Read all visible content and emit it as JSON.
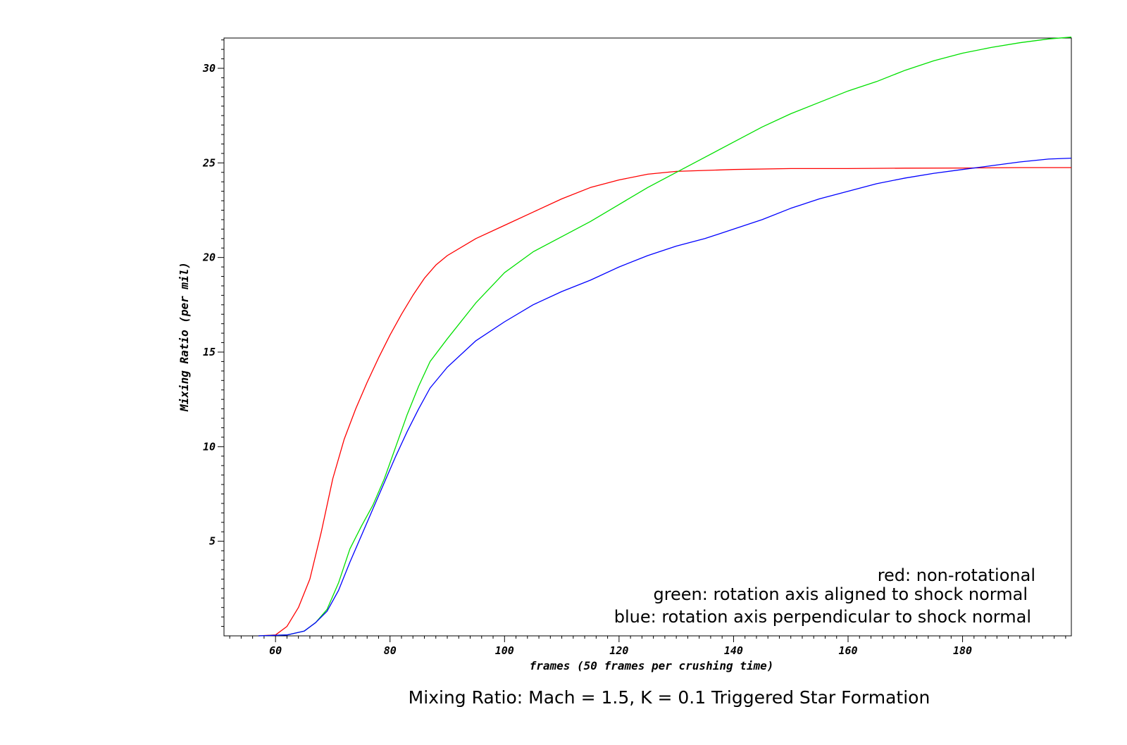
{
  "chart_data": {
    "type": "line",
    "title": "Mixing Ratio: Mach = 1.5, K = 0.1 Triggered Star Formation",
    "xlabel": "frames (50 frames per crushing time)",
    "ylabel": "Mixing Ratio (per mil)",
    "xlim": [
      51,
      199
    ],
    "ylim": [
      0,
      31.6
    ],
    "xticks": [
      60,
      80,
      100,
      120,
      140,
      160,
      180
    ],
    "yticks": [
      5,
      10,
      15,
      20,
      25,
      30
    ],
    "grid": false,
    "legend_position": "bottom-right",
    "legend": [
      "red: non-rotational",
      "green: rotation axis aligned to shock normal",
      "blue: rotation axis perpendicular to shock normal"
    ],
    "series": [
      {
        "color": "#ff0000",
        "points": [
          [
            57,
            0
          ],
          [
            60,
            0.05
          ],
          [
            62,
            0.5
          ],
          [
            64,
            1.5
          ],
          [
            66,
            3
          ],
          [
            68,
            5.5
          ],
          [
            70,
            8.3
          ],
          [
            72,
            10.4
          ],
          [
            74,
            12
          ],
          [
            76,
            13.4
          ],
          [
            78,
            14.7
          ],
          [
            80,
            15.9
          ],
          [
            82,
            17
          ],
          [
            84,
            18
          ],
          [
            86,
            18.9
          ],
          [
            88,
            19.6
          ],
          [
            90,
            20.1
          ],
          [
            95,
            21
          ],
          [
            100,
            21.7
          ],
          [
            105,
            22.4
          ],
          [
            110,
            23.1
          ],
          [
            115,
            23.7
          ],
          [
            120,
            24.1
          ],
          [
            125,
            24.4
          ],
          [
            130,
            24.55
          ],
          [
            140,
            24.65
          ],
          [
            150,
            24.7
          ],
          [
            160,
            24.7
          ],
          [
            170,
            24.72
          ],
          [
            180,
            24.73
          ],
          [
            190,
            24.75
          ],
          [
            199,
            24.75
          ]
        ]
      },
      {
        "color": "#00e000",
        "points": [
          [
            57,
            0
          ],
          [
            62,
            0.05
          ],
          [
            65,
            0.25
          ],
          [
            67,
            0.7
          ],
          [
            69,
            1.4
          ],
          [
            71,
            2.8
          ],
          [
            73,
            4.6
          ],
          [
            75,
            5.8
          ],
          [
            77,
            6.9
          ],
          [
            79,
            8.3
          ],
          [
            81,
            10
          ],
          [
            83,
            11.7
          ],
          [
            85,
            13.2
          ],
          [
            87,
            14.5
          ],
          [
            90,
            15.7
          ],
          [
            95,
            17.6
          ],
          [
            100,
            19.2
          ],
          [
            105,
            20.3
          ],
          [
            110,
            21.1
          ],
          [
            115,
            21.9
          ],
          [
            120,
            22.8
          ],
          [
            125,
            23.7
          ],
          [
            130,
            24.5
          ],
          [
            135,
            25.3
          ],
          [
            140,
            26.1
          ],
          [
            145,
            26.9
          ],
          [
            150,
            27.6
          ],
          [
            155,
            28.2
          ],
          [
            160,
            28.8
          ],
          [
            165,
            29.3
          ],
          [
            170,
            29.9
          ],
          [
            175,
            30.4
          ],
          [
            180,
            30.8
          ],
          [
            185,
            31.1
          ],
          [
            190,
            31.35
          ],
          [
            195,
            31.55
          ],
          [
            199,
            31.65
          ]
        ]
      },
      {
        "color": "#0000ff",
        "points": [
          [
            57,
            0
          ],
          [
            62,
            0.05
          ],
          [
            65,
            0.25
          ],
          [
            67,
            0.7
          ],
          [
            69,
            1.3
          ],
          [
            71,
            2.4
          ],
          [
            73,
            3.9
          ],
          [
            75,
            5.3
          ],
          [
            77,
            6.7
          ],
          [
            79,
            8.1
          ],
          [
            81,
            9.5
          ],
          [
            83,
            10.8
          ],
          [
            85,
            12
          ],
          [
            87,
            13.1
          ],
          [
            90,
            14.2
          ],
          [
            95,
            15.6
          ],
          [
            100,
            16.6
          ],
          [
            105,
            17.5
          ],
          [
            110,
            18.2
          ],
          [
            115,
            18.8
          ],
          [
            120,
            19.5
          ],
          [
            125,
            20.1
          ],
          [
            130,
            20.6
          ],
          [
            135,
            21
          ],
          [
            140,
            21.5
          ],
          [
            145,
            22
          ],
          [
            150,
            22.6
          ],
          [
            155,
            23.1
          ],
          [
            160,
            23.5
          ],
          [
            165,
            23.9
          ],
          [
            170,
            24.2
          ],
          [
            175,
            24.45
          ],
          [
            180,
            24.65
          ],
          [
            185,
            24.85
          ],
          [
            190,
            25.05
          ],
          [
            195,
            25.2
          ],
          [
            199,
            25.25
          ]
        ]
      }
    ]
  }
}
